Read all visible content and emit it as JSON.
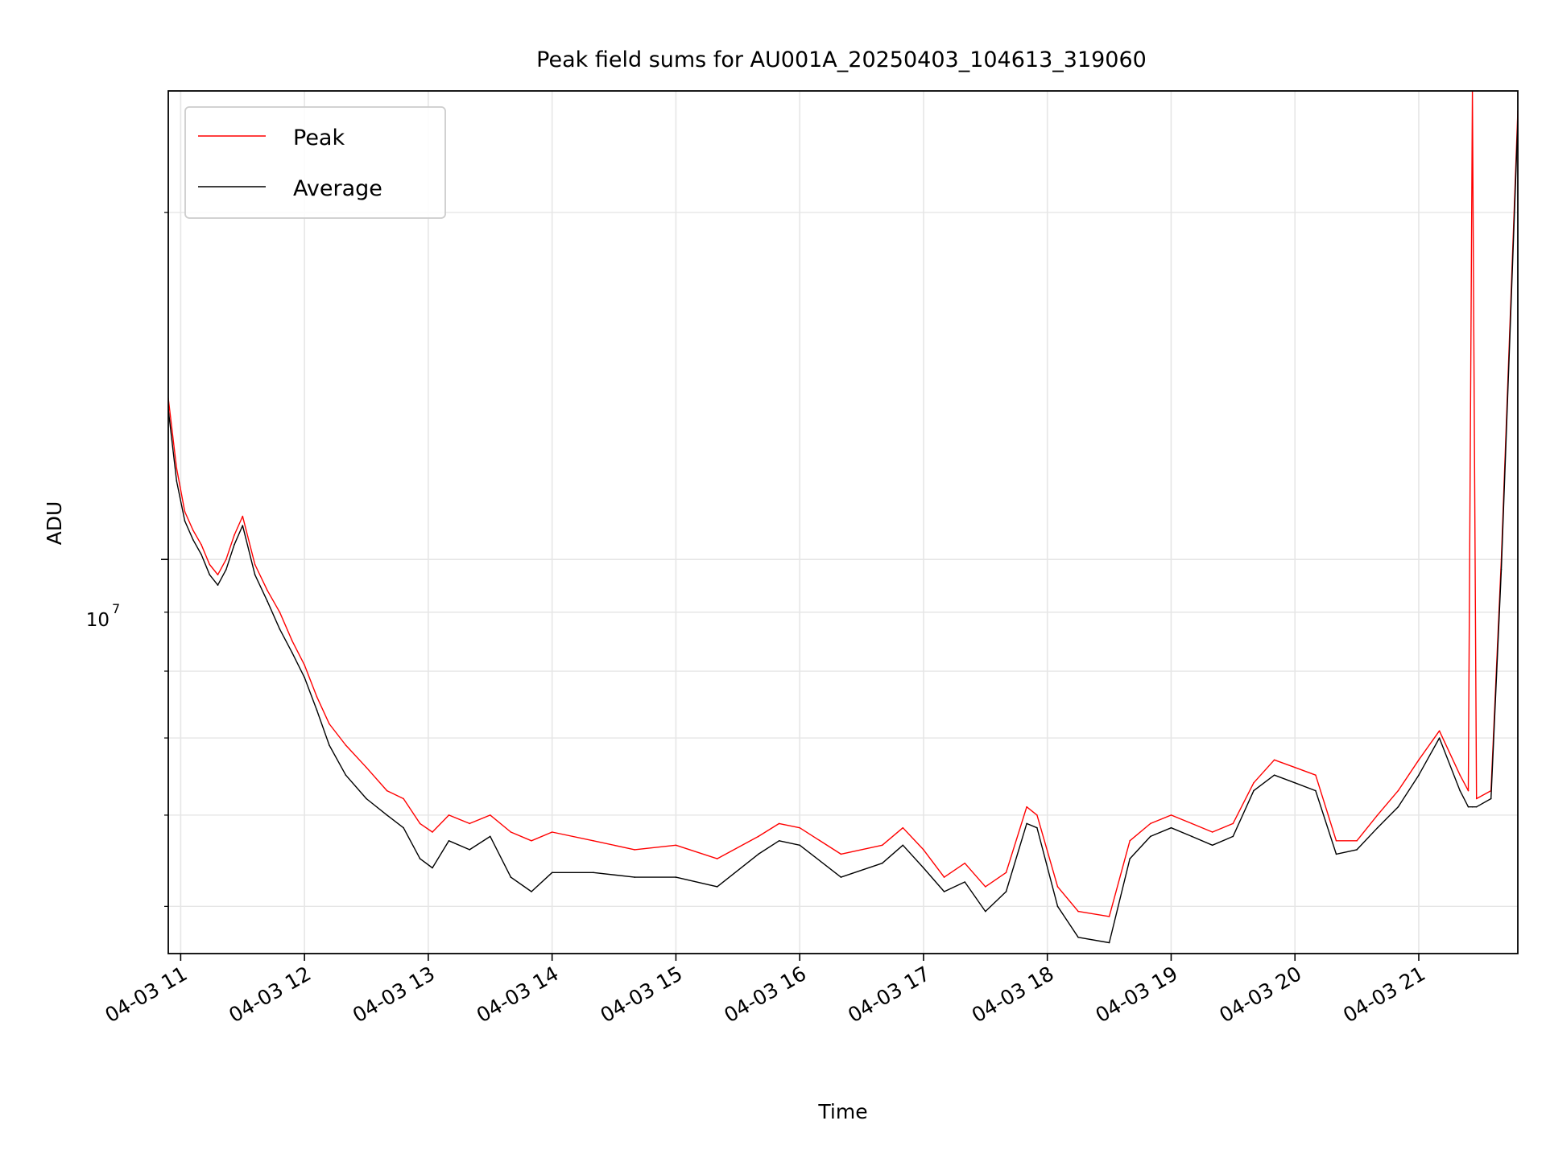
{
  "chart_data": {
    "type": "line",
    "title": "Peak field sums for AU001A_20250403_104613_319060",
    "xlabel": "Time",
    "ylabel": "ADU",
    "yscale": "log",
    "xlim": [
      "2025-04-03 10:54",
      "2025-04-03 21:48"
    ],
    "ylim": [
      4550000,
      25500000
    ],
    "ytick_label": {
      "base": "10",
      "exp": "7"
    },
    "ytick_value": 10000000,
    "minor_yticks": [
      5000000,
      6000000,
      7000000,
      8000000,
      9000000,
      20000000
    ],
    "xtick_labels": [
      "04-03 11",
      "04-03 12",
      "04-03 13",
      "04-03 14",
      "04-03 15",
      "04-03 16",
      "04-03 17",
      "04-03 18",
      "04-03 19",
      "04-03 20",
      "04-03 21"
    ],
    "xtick_values": [
      "2025-04-03 11:00",
      "2025-04-03 12:00",
      "2025-04-03 13:00",
      "2025-04-03 14:00",
      "2025-04-03 15:00",
      "2025-04-03 16:00",
      "2025-04-03 17:00",
      "2025-04-03 18:00",
      "2025-04-03 19:00",
      "2025-04-03 20:00",
      "2025-04-03 21:00"
    ],
    "grid": true,
    "legend_position": "upper-left",
    "series": [
      {
        "name": "Peak",
        "color": "#ff0000",
        "x": [
          "2025-04-03 10:54",
          "2025-04-03 10:58",
          "2025-04-03 11:02",
          "2025-04-03 11:06",
          "2025-04-03 11:10",
          "2025-04-03 11:14",
          "2025-04-03 11:18",
          "2025-04-03 11:22",
          "2025-04-03 11:26",
          "2025-04-03 11:30",
          "2025-04-03 11:36",
          "2025-04-03 11:42",
          "2025-04-03 11:48",
          "2025-04-03 11:54",
          "2025-04-03 12:00",
          "2025-04-03 12:06",
          "2025-04-03 12:12",
          "2025-04-03 12:20",
          "2025-04-03 12:30",
          "2025-04-03 12:40",
          "2025-04-03 12:48",
          "2025-04-03 12:56",
          "2025-04-03 13:02",
          "2025-04-03 13:10",
          "2025-04-03 13:20",
          "2025-04-03 13:30",
          "2025-04-03 13:40",
          "2025-04-03 13:50",
          "2025-04-03 14:00",
          "2025-04-03 14:20",
          "2025-04-03 14:40",
          "2025-04-03 15:00",
          "2025-04-03 15:20",
          "2025-04-03 15:40",
          "2025-04-03 15:50",
          "2025-04-03 16:00",
          "2025-04-03 16:20",
          "2025-04-03 16:40",
          "2025-04-03 16:50",
          "2025-04-03 17:00",
          "2025-04-03 17:10",
          "2025-04-03 17:20",
          "2025-04-03 17:30",
          "2025-04-03 17:40",
          "2025-04-03 17:50",
          "2025-04-03 17:55",
          "2025-04-03 18:05",
          "2025-04-03 18:15",
          "2025-04-03 18:30",
          "2025-04-03 18:40",
          "2025-04-03 18:50",
          "2025-04-03 19:00",
          "2025-04-03 19:10",
          "2025-04-03 19:20",
          "2025-04-03 19:30",
          "2025-04-03 19:40",
          "2025-04-03 19:50",
          "2025-04-03 20:00",
          "2025-04-03 20:10",
          "2025-04-03 20:20",
          "2025-04-03 20:30",
          "2025-04-03 20:40",
          "2025-04-03 20:50",
          "2025-04-03 21:00",
          "2025-04-03 21:10",
          "2025-04-03 21:20",
          "2025-04-03 21:24",
          "2025-04-03 21:26",
          "2025-04-03 21:28",
          "2025-04-03 21:35",
          "2025-04-03 21:40",
          "2025-04-03 21:48"
        ],
        "y": [
          13800000,
          12000000,
          11000000,
          10600000,
          10300000,
          9900000,
          9700000,
          10000000,
          10500000,
          10900000,
          9900000,
          9400000,
          9000000,
          8500000,
          8100000,
          7600000,
          7200000,
          6900000,
          6600000,
          6300000,
          6200000,
          5900000,
          5800000,
          6000000,
          5900000,
          6000000,
          5800000,
          5700000,
          5800000,
          5700000,
          5600000,
          5650000,
          5500000,
          5750000,
          5900000,
          5850000,
          5550000,
          5650000,
          5850000,
          5600000,
          5300000,
          5450000,
          5200000,
          5350000,
          6100000,
          6000000,
          5200000,
          4950000,
          4900000,
          5700000,
          5900000,
          6000000,
          5900000,
          5800000,
          5900000,
          6400000,
          6700000,
          6600000,
          6500000,
          5700000,
          5700000,
          6000000,
          6300000,
          6700000,
          7100000,
          6500000,
          6300000,
          25500000,
          6200000,
          6300000,
          10000000,
          24500000
        ]
      },
      {
        "name": "Average",
        "color": "#000000",
        "x": [
          "2025-04-03 10:54",
          "2025-04-03 10:58",
          "2025-04-03 11:02",
          "2025-04-03 11:06",
          "2025-04-03 11:10",
          "2025-04-03 11:14",
          "2025-04-03 11:18",
          "2025-04-03 11:22",
          "2025-04-03 11:26",
          "2025-04-03 11:30",
          "2025-04-03 11:36",
          "2025-04-03 11:42",
          "2025-04-03 11:48",
          "2025-04-03 11:54",
          "2025-04-03 12:00",
          "2025-04-03 12:06",
          "2025-04-03 12:12",
          "2025-04-03 12:20",
          "2025-04-03 12:30",
          "2025-04-03 12:40",
          "2025-04-03 12:48",
          "2025-04-03 12:56",
          "2025-04-03 13:02",
          "2025-04-03 13:10",
          "2025-04-03 13:20",
          "2025-04-03 13:30",
          "2025-04-03 13:40",
          "2025-04-03 13:50",
          "2025-04-03 14:00",
          "2025-04-03 14:20",
          "2025-04-03 14:40",
          "2025-04-03 15:00",
          "2025-04-03 15:20",
          "2025-04-03 15:40",
          "2025-04-03 15:50",
          "2025-04-03 16:00",
          "2025-04-03 16:20",
          "2025-04-03 16:40",
          "2025-04-03 16:50",
          "2025-04-03 17:00",
          "2025-04-03 17:10",
          "2025-04-03 17:20",
          "2025-04-03 17:30",
          "2025-04-03 17:40",
          "2025-04-03 17:50",
          "2025-04-03 17:55",
          "2025-04-03 18:05",
          "2025-04-03 18:15",
          "2025-04-03 18:30",
          "2025-04-03 18:40",
          "2025-04-03 18:50",
          "2025-04-03 19:00",
          "2025-04-03 19:10",
          "2025-04-03 19:20",
          "2025-04-03 19:30",
          "2025-04-03 19:40",
          "2025-04-03 19:50",
          "2025-04-03 20:00",
          "2025-04-03 20:10",
          "2025-04-03 20:20",
          "2025-04-03 20:30",
          "2025-04-03 20:40",
          "2025-04-03 20:50",
          "2025-04-03 21:00",
          "2025-04-03 21:10",
          "2025-04-03 21:20",
          "2025-04-03 21:24",
          "2025-04-03 21:26",
          "2025-04-03 21:28",
          "2025-04-03 21:35",
          "2025-04-03 21:40",
          "2025-04-03 21:48"
        ],
        "y": [
          13500000,
          11700000,
          10800000,
          10400000,
          10100000,
          9700000,
          9500000,
          9800000,
          10300000,
          10700000,
          9700000,
          9200000,
          8700000,
          8300000,
          7900000,
          7400000,
          6900000,
          6500000,
          6200000,
          6000000,
          5850000,
          5500000,
          5400000,
          5700000,
          5600000,
          5750000,
          5300000,
          5150000,
          5350000,
          5350000,
          5300000,
          5300000,
          5200000,
          5550000,
          5700000,
          5650000,
          5300000,
          5450000,
          5650000,
          5400000,
          5150000,
          5250000,
          4950000,
          5150000,
          5900000,
          5850000,
          5000000,
          4700000,
          4650000,
          5500000,
          5750000,
          5850000,
          5750000,
          5650000,
          5750000,
          6300000,
          6500000,
          6400000,
          6300000,
          5550000,
          5600000,
          5850000,
          6100000,
          6500000,
          7000000,
          6300000,
          6100000,
          6100000,
          6100000,
          6200000,
          9800000,
          24000000
        ]
      }
    ]
  }
}
